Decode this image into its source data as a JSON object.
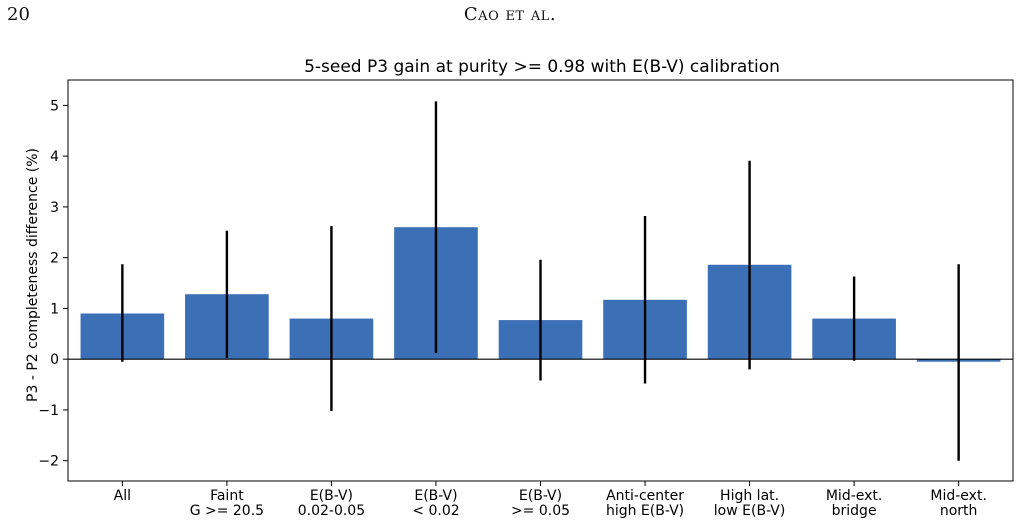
{
  "running_head": {
    "page_number": "20",
    "authors": "Cao et al."
  },
  "colors": {
    "bar": "#3b6fb6",
    "error_bar": "#000000",
    "zero_line": "#000000",
    "axes": "#000000"
  },
  "chart_data": {
    "type": "bar",
    "title": "5-seed P3 gain at purity >= 0.98 with E(B-V) calibration",
    "xlabel": "",
    "ylabel": "P3 - P2 completeness difference (%)",
    "ylim": [
      -2.4,
      5.5
    ],
    "yticks": [
      -2,
      -1,
      0,
      1,
      2,
      3,
      4,
      5
    ],
    "ytick_labels": [
      "−2",
      "−1",
      "0",
      "1",
      "2",
      "3",
      "4",
      "5"
    ],
    "grid": false,
    "legend": "none",
    "categories": [
      [
        "All"
      ],
      [
        "Faint",
        "G >= 20.5"
      ],
      [
        "E(B-V)",
        "0.02-0.05"
      ],
      [
        "E(B-V)",
        "< 0.02"
      ],
      [
        "E(B-V)",
        ">= 0.05"
      ],
      [
        "Anti-center",
        "high E(B-V)"
      ],
      [
        "High lat.",
        "low E(B-V)"
      ],
      [
        "Mid-ext.",
        "bridge"
      ],
      [
        "Mid-ext.",
        "north"
      ]
    ],
    "values": [
      0.9,
      1.28,
      0.8,
      2.6,
      0.77,
      1.17,
      1.86,
      0.8,
      -0.05
    ],
    "error_low": [
      -0.05,
      0.02,
      -1.02,
      0.12,
      -0.42,
      -0.48,
      -0.2,
      -0.03,
      -2.0
    ],
    "error_high": [
      1.87,
      2.53,
      2.62,
      5.08,
      1.96,
      2.82,
      3.91,
      1.63,
      1.87
    ]
  }
}
